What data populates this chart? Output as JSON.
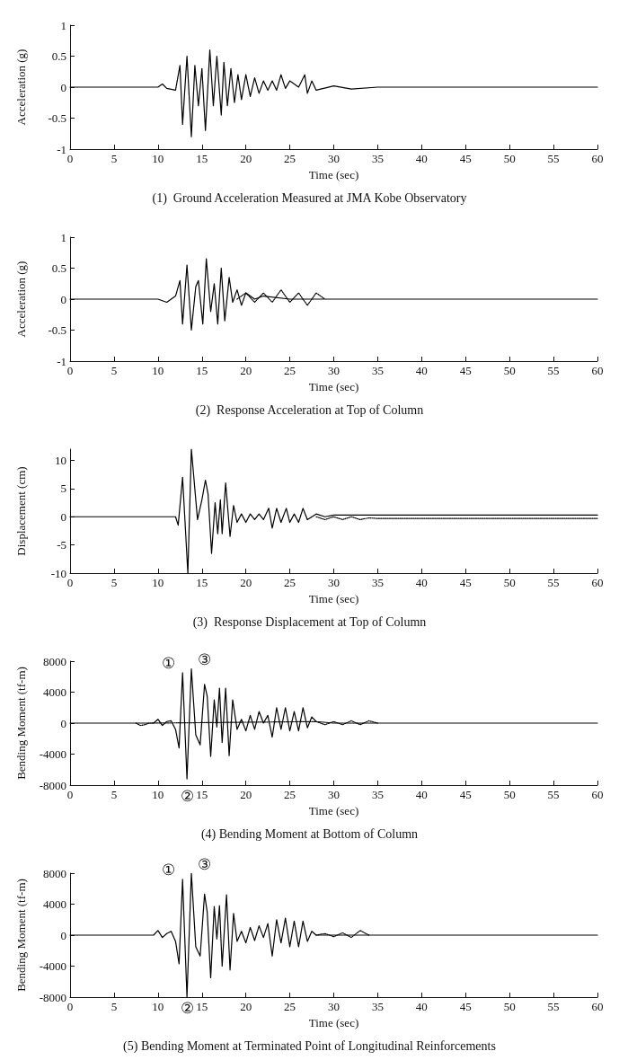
{
  "chart_data": [
    {
      "type": "line",
      "title": "(1)  Ground Acceleration Measured at JMA Kobe Observatory",
      "xlabel": "Time (sec)",
      "ylabel": "Acceleration (g)",
      "xlim": [
        0,
        60
      ],
      "xticks": [
        0,
        5,
        10,
        15,
        20,
        25,
        30,
        35,
        40,
        45,
        50,
        55,
        60
      ],
      "ylim": [
        -1,
        1
      ],
      "yticks": [
        -1,
        -0.5,
        0,
        0.5,
        1
      ],
      "grid": false,
      "marker": "none",
      "series": [
        {
          "color": "#000000",
          "line_style": "solid",
          "x": [
            0,
            10,
            10.5,
            11,
            12,
            12.5,
            12.8,
            13.3,
            13.8,
            14.2,
            14.6,
            15,
            15.4,
            15.9,
            16.3,
            16.7,
            17.2,
            17.5,
            17.9,
            18.3,
            18.7,
            19.1,
            19.5,
            20,
            20.5,
            21,
            21.5,
            22,
            22.5,
            23,
            23.5,
            24,
            24.5,
            25,
            26,
            26.7,
            27,
            27.5,
            28,
            30,
            32,
            35,
            60
          ],
          "values": [
            0,
            0,
            0.05,
            -0.02,
            -0.05,
            0.35,
            -0.6,
            0.5,
            -0.8,
            0.35,
            -0.3,
            0.3,
            -0.7,
            0.6,
            -0.3,
            0.5,
            -0.45,
            0.4,
            -0.3,
            0.3,
            -0.25,
            0.2,
            -0.2,
            0.2,
            -0.15,
            0.15,
            -0.1,
            0.1,
            -0.05,
            0.1,
            -0.05,
            0.2,
            -0.02,
            0.1,
            0,
            0.2,
            -0.1,
            0.1,
            -0.05,
            0.02,
            -0.03,
            0,
            0
          ]
        }
      ]
    },
    {
      "type": "line",
      "title": "(2)  Response Acceleration at Top of Column",
      "xlabel": "Time (sec)",
      "ylabel": "Acceleration (g)",
      "xlim": [
        0,
        60
      ],
      "xticks": [
        0,
        5,
        10,
        15,
        20,
        25,
        30,
        35,
        40,
        45,
        50,
        55,
        60
      ],
      "ylim": [
        -1,
        1
      ],
      "yticks": [
        -1,
        -0.5,
        0,
        0.5,
        1
      ],
      "grid": false,
      "marker": "none",
      "series": [
        {
          "color": "#000000",
          "line_style": "solid",
          "x": [
            0,
            10,
            11,
            12,
            12.5,
            12.8,
            13.3,
            13.8,
            14.3,
            14.6,
            15.1,
            15.5,
            16,
            16.4,
            16.8,
            17.2,
            17.6,
            18.1,
            18.5,
            19,
            19.5,
            20,
            21,
            22,
            25,
            28,
            60
          ],
          "values": [
            0,
            0,
            -0.05,
            0.05,
            0.3,
            -0.4,
            0.55,
            -0.5,
            0.2,
            0.3,
            -0.4,
            0.65,
            -0.2,
            0.25,
            -0.4,
            0.5,
            -0.35,
            0.35,
            -0.05,
            0.15,
            -0.1,
            0.1,
            0,
            0.05,
            0,
            0,
            0
          ]
        },
        {
          "color": "#000000",
          "line_style": "dotted",
          "x": [
            19,
            20,
            21,
            22,
            23,
            24,
            25,
            26,
            27,
            28,
            29
          ],
          "values": [
            0,
            0.1,
            -0.05,
            0.1,
            -0.05,
            0.15,
            -0.05,
            0.1,
            -0.1,
            0.1,
            0
          ]
        }
      ]
    },
    {
      "type": "line",
      "title": "(3)  Response Displacement at Top of Column",
      "xlabel": "Time (sec)",
      "ylabel": "Displacement (cm)",
      "xlim": [
        0,
        60
      ],
      "xticks": [
        0,
        5,
        10,
        15,
        20,
        25,
        30,
        35,
        40,
        45,
        50,
        55,
        60
      ],
      "ylim": [
        -10,
        12
      ],
      "yticks": [
        -10,
        -5,
        0,
        5,
        10
      ],
      "grid": false,
      "marker": "none",
      "series": [
        {
          "color": "#000000",
          "line_style": "solid",
          "x": [
            0,
            12,
            12.3,
            12.8,
            13.4,
            13.8,
            14.5,
            15,
            15.4,
            15.7,
            16.1,
            16.5,
            16.8,
            17.1,
            17.3,
            17.7,
            18.2,
            18.6,
            19,
            19.5,
            20,
            20.5,
            21,
            21.5,
            22,
            22.6,
            23,
            23.5,
            24,
            24.6,
            25,
            25.5,
            26,
            26.5,
            27,
            28,
            29,
            30,
            40,
            60
          ],
          "values": [
            0,
            0,
            -1.5,
            7,
            -10,
            12,
            -0.5,
            3,
            6.5,
            4,
            -6.5,
            2.5,
            -3,
            3,
            -3,
            6,
            -3.5,
            2,
            -1,
            0.5,
            -1,
            0.5,
            -0.5,
            0.5,
            -0.5,
            1.5,
            -2,
            1.5,
            -1,
            1.5,
            -1,
            0.5,
            -1,
            1.5,
            -0.5,
            0.5,
            0,
            0.3,
            0.3,
            0.3
          ]
        },
        {
          "color": "#000000",
          "line_style": "dotted",
          "x": [
            28,
            29,
            30,
            31,
            32,
            33,
            34,
            35,
            40,
            45,
            50,
            60
          ],
          "values": [
            0,
            -0.5,
            0,
            -0.5,
            0,
            -0.5,
            -0.2,
            -0.3,
            -0.3,
            -0.3,
            -0.3,
            -0.3
          ]
        }
      ]
    },
    {
      "type": "line",
      "title": "(4) Bending Moment at Bottom of Column",
      "xlabel": "Time (sec)",
      "ylabel": "Bending Moment (tf-m)",
      "xlim": [
        0,
        60
      ],
      "xticks": [
        0,
        5,
        10,
        15,
        20,
        25,
        30,
        35,
        40,
        45,
        50,
        55,
        60
      ],
      "ylim": [
        -8000,
        8000
      ],
      "yticks": [
        -8000,
        -4000,
        0,
        4000,
        8000
      ],
      "grid": false,
      "marker": "none",
      "annotations": [
        {
          "text": "①",
          "x": 12.8,
          "y": 6500
        },
        {
          "text": "②",
          "x": 13.3,
          "y": -7200
        },
        {
          "text": "③",
          "x": 13.8,
          "y": 7000
        }
      ],
      "series": [
        {
          "color": "#000000",
          "line_style": "solid",
          "x": [
            0,
            9.5,
            10,
            10.5,
            11,
            11.5,
            12,
            12.4,
            12.8,
            13.3,
            13.8,
            14.3,
            14.8,
            15.3,
            15.6,
            16,
            16.4,
            16.7,
            17,
            17.3,
            17.7,
            18.1,
            18.5,
            19,
            19.5,
            20,
            20.5,
            21,
            21.5,
            22,
            22.5,
            23,
            23.5,
            24,
            24.5,
            25,
            25.5,
            26,
            26.5,
            27,
            27.5,
            28,
            30,
            60
          ],
          "values": [
            0,
            0,
            500,
            -300,
            200,
            300,
            -800,
            -3200,
            6500,
            -7200,
            7000,
            -1500,
            -2800,
            5000,
            3500,
            -4300,
            3000,
            -500,
            4500,
            -2500,
            4500,
            -4200,
            3000,
            -800,
            500,
            -1000,
            1000,
            -800,
            1500,
            0,
            1000,
            -1800,
            2000,
            -800,
            2000,
            -1000,
            1500,
            -1000,
            2000,
            -600,
            800,
            200,
            0,
            0
          ]
        },
        {
          "color": "#000000",
          "line_style": "dotted",
          "x": [
            7.5,
            8,
            8.5,
            9,
            28,
            29,
            30,
            31,
            32,
            33,
            34,
            35
          ],
          "values": [
            0,
            -300,
            -200,
            0,
            200,
            -200,
            200,
            -200,
            300,
            -200,
            300,
            0
          ]
        }
      ]
    },
    {
      "type": "line",
      "title": "(5) Bending Moment at Terminated Point of Longitudinal Reinforcements",
      "xlabel": "Time (sec)",
      "ylabel": "Bending Moment (tf-m)",
      "xlim": [
        0,
        60
      ],
      "xticks": [
        0,
        5,
        10,
        15,
        20,
        25,
        30,
        35,
        40,
        45,
        50,
        55,
        60
      ],
      "ylim": [
        -8000,
        8000
      ],
      "yticks": [
        -8000,
        -4000,
        0,
        4000,
        8000
      ],
      "grid": false,
      "marker": "none",
      "annotations": [
        {
          "text": "①",
          "x": 12.8,
          "y": 7200
        },
        {
          "text": "②",
          "x": 13.3,
          "y": -8000
        },
        {
          "text": "③",
          "x": 13.8,
          "y": 8000
        }
      ],
      "series": [
        {
          "color": "#000000",
          "line_style": "solid",
          "x": [
            0,
            9.5,
            10,
            10.5,
            11,
            11.5,
            12,
            12.4,
            12.8,
            13.3,
            13.8,
            14.3,
            14.8,
            15.3,
            15.6,
            16,
            16.4,
            16.7,
            17,
            17.3,
            17.8,
            18.2,
            18.6,
            19,
            19.5,
            20,
            20.5,
            21,
            21.5,
            22,
            22.5,
            23,
            23.5,
            24,
            24.5,
            25,
            25.5,
            26,
            26.5,
            27,
            27.5,
            28,
            60
          ],
          "values": [
            0,
            0,
            600,
            -300,
            200,
            500,
            -800,
            -3700,
            7200,
            -8000,
            8000,
            -1500,
            -2700,
            5300,
            3000,
            -5500,
            3700,
            -500,
            3800,
            -4000,
            5200,
            -4500,
            2800,
            -800,
            500,
            -1000,
            1000,
            -700,
            1200,
            -300,
            1500,
            -2700,
            2000,
            -1000,
            2200,
            -1500,
            1800,
            -1500,
            1800,
            -800,
            500,
            0,
            0
          ]
        },
        {
          "color": "#000000",
          "line_style": "dotted",
          "x": [
            28,
            29,
            30,
            31,
            32,
            33,
            34
          ],
          "values": [
            0,
            200,
            -200,
            300,
            -300,
            600,
            0
          ]
        }
      ]
    }
  ]
}
